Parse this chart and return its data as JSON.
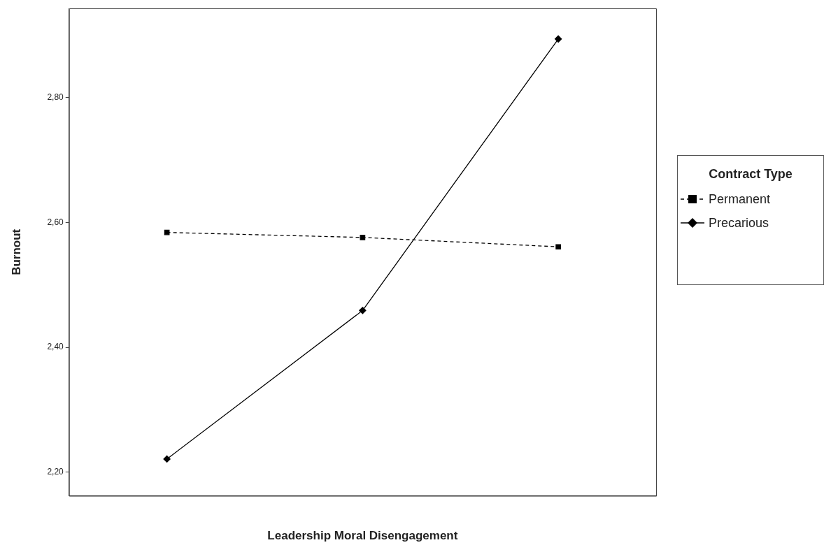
{
  "chart_data": {
    "type": "line",
    "xlabel": "Leadership Moral Disengagement",
    "ylabel": "Burnout",
    "legend_title": "Contract Type",
    "legend": "right",
    "tick_labels": "y",
    "categories": [
      null,
      null,
      null
    ],
    "ylim": [
      2.162,
      2.943
    ],
    "yticks": [
      {
        "value": 2.2,
        "label": "2,20"
      },
      {
        "value": 2.4,
        "label": "2,40"
      },
      {
        "value": 2.6,
        "label": "2,60"
      },
      {
        "value": 2.8,
        "label": "2,80"
      }
    ],
    "series": [
      {
        "name": "Permanent",
        "color": "#000000",
        "marker": "square",
        "line_style": "dashed",
        "values": [
          2.584,
          2.576,
          2.561
        ]
      },
      {
        "name": "Precarious",
        "color": "#000000",
        "marker": "diamond",
        "line_style": "solid",
        "values": [
          2.221,
          2.459,
          2.894
        ]
      }
    ]
  }
}
